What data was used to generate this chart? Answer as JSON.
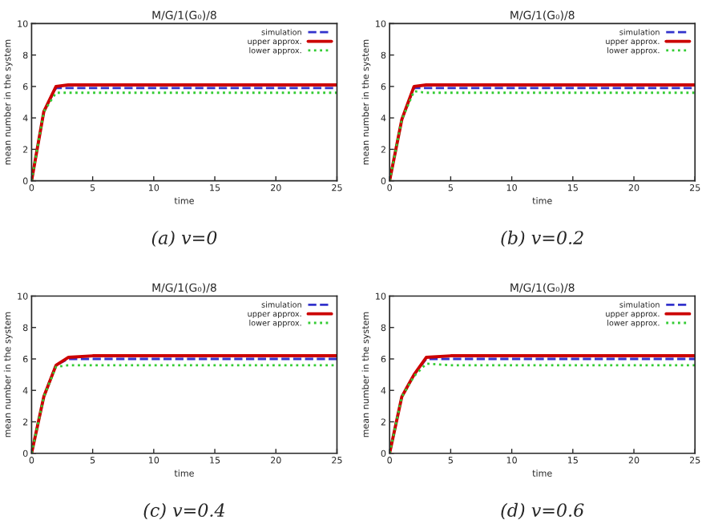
{
  "chart_data": [
    {
      "type": "line",
      "title": "M/G/1(G₀)/8",
      "xlabel": "time",
      "ylabel": "mean number in the system",
      "annotations": [
        "(a) v=0"
      ],
      "x": [
        0,
        1,
        2,
        3,
        5,
        25
      ],
      "xlim": [
        0,
        25
      ],
      "xticks": [
        0,
        5,
        10,
        15,
        20,
        25
      ],
      "ylim": [
        0,
        10
      ],
      "yticks": [
        0,
        2,
        4,
        6,
        8,
        10
      ],
      "legend": "top right",
      "grid": false,
      "series": [
        {
          "name": "simulation",
          "color": "#3333cc",
          "line_style": "dashed",
          "values": [
            0,
            4.4,
            5.9,
            5.9,
            5.9,
            5.9
          ]
        },
        {
          "name": "upper approx.",
          "color": "#cc0000",
          "line_style": "solid",
          "values": [
            0,
            4.4,
            6.0,
            6.1,
            6.1,
            6.1
          ]
        },
        {
          "name": "lower approx.",
          "color": "#33cc33",
          "line_style": "dotted",
          "values": [
            0,
            4.4,
            5.6,
            5.6,
            5.6,
            5.6
          ]
        }
      ]
    },
    {
      "type": "line",
      "title": "M/G/1(G₀)/8",
      "xlabel": "time",
      "ylabel": "mean number in the system",
      "annotations": [
        "(b) v=0.2"
      ],
      "x": [
        0,
        1,
        2,
        3,
        5,
        25
      ],
      "xlim": [
        0,
        25
      ],
      "xticks": [
        0,
        5,
        10,
        15,
        20,
        25
      ],
      "ylim": [
        0,
        10
      ],
      "yticks": [
        0,
        2,
        4,
        6,
        8,
        10
      ],
      "legend": "top right",
      "grid": false,
      "series": [
        {
          "name": "simulation",
          "color": "#3333cc",
          "line_style": "dashed",
          "values": [
            0,
            3.9,
            5.9,
            5.9,
            5.9,
            5.9
          ]
        },
        {
          "name": "upper approx.",
          "color": "#cc0000",
          "line_style": "solid",
          "values": [
            0,
            3.9,
            6.0,
            6.1,
            6.1,
            6.1
          ]
        },
        {
          "name": "lower approx.",
          "color": "#33cc33",
          "line_style": "dotted",
          "values": [
            0,
            3.9,
            5.7,
            5.6,
            5.6,
            5.6
          ]
        }
      ]
    },
    {
      "type": "line",
      "title": "M/G/1(G₀)/8",
      "xlabel": "time",
      "ylabel": "mean number in the system",
      "annotations": [
        "(c) v=0.4"
      ],
      "x": [
        0,
        1,
        2,
        3,
        5,
        25
      ],
      "xlim": [
        0,
        25
      ],
      "xticks": [
        0,
        5,
        10,
        15,
        20,
        25
      ],
      "ylim": [
        0,
        10
      ],
      "yticks": [
        0,
        2,
        4,
        6,
        8,
        10
      ],
      "legend": "top right",
      "grid": false,
      "series": [
        {
          "name": "simulation",
          "color": "#3333cc",
          "line_style": "dashed",
          "values": [
            0,
            3.6,
            5.6,
            6.0,
            6.0,
            6.0
          ]
        },
        {
          "name": "upper approx.",
          "color": "#cc0000",
          "line_style": "solid",
          "values": [
            0,
            3.6,
            5.6,
            6.1,
            6.2,
            6.2
          ]
        },
        {
          "name": "lower approx.",
          "color": "#33cc33",
          "line_style": "dotted",
          "values": [
            0,
            3.6,
            5.5,
            5.6,
            5.6,
            5.6
          ]
        }
      ]
    },
    {
      "type": "line",
      "title": "M/G/1(G₀)/8",
      "xlabel": "time",
      "ylabel": "mean number in the system",
      "annotations": [
        "(d) v=0.6"
      ],
      "x": [
        0,
        1,
        2,
        3,
        5,
        25
      ],
      "xlim": [
        0,
        25
      ],
      "xticks": [
        0,
        5,
        10,
        15,
        20,
        25
      ],
      "ylim": [
        0,
        10
      ],
      "yticks": [
        0,
        2,
        4,
        6,
        8,
        10
      ],
      "legend": "top right",
      "grid": false,
      "series": [
        {
          "name": "simulation",
          "color": "#3333cc",
          "line_style": "dashed",
          "values": [
            0,
            3.6,
            5.0,
            6.0,
            6.0,
            6.0
          ]
        },
        {
          "name": "upper approx.",
          "color": "#cc0000",
          "line_style": "solid",
          "values": [
            0,
            3.6,
            5.0,
            6.1,
            6.2,
            6.2
          ]
        },
        {
          "name": "lower approx.",
          "color": "#33cc33",
          "line_style": "dotted",
          "values": [
            0,
            3.6,
            4.9,
            5.7,
            5.6,
            5.6
          ]
        }
      ]
    }
  ]
}
